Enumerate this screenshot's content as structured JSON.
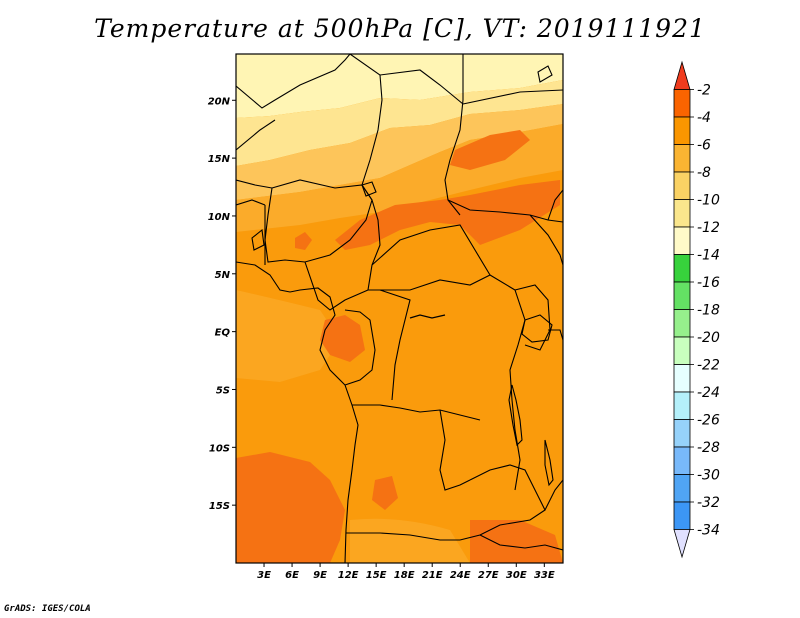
{
  "title": "Temperature at 500hPa [C], VT: 2019111921",
  "credit": "GrADS: IGES/COLA",
  "map": {
    "variable": "Temperature",
    "level": "500hPa",
    "units": "C",
    "valid_time": "2019111921",
    "lon_range": [
      0,
      35
    ],
    "lat_range": [
      -20,
      24
    ],
    "lat_ticks": [
      {
        "value": 20,
        "label": "20N"
      },
      {
        "value": 15,
        "label": "15N"
      },
      {
        "value": 10,
        "label": "10N"
      },
      {
        "value": 5,
        "label": "5N"
      },
      {
        "value": 0,
        "label": "EQ"
      },
      {
        "value": -5,
        "label": "5S"
      },
      {
        "value": -10,
        "label": "10S"
      },
      {
        "value": -15,
        "label": "15S"
      }
    ],
    "lon_ticks": [
      {
        "value": 3,
        "label": "3E"
      },
      {
        "value": 6,
        "label": "6E"
      },
      {
        "value": 9,
        "label": "9E"
      },
      {
        "value": 12,
        "label": "12E"
      },
      {
        "value": 15,
        "label": "15E"
      },
      {
        "value": 18,
        "label": "18E"
      },
      {
        "value": 21,
        "label": "21E"
      },
      {
        "value": 24,
        "label": "24E"
      },
      {
        "value": 27,
        "label": "27E"
      },
      {
        "value": 30,
        "label": "30E"
      },
      {
        "value": 33,
        "label": "33E"
      }
    ]
  },
  "colorbar": {
    "levels": [
      "-2",
      "-4",
      "-6",
      "-8",
      "-10",
      "-12",
      "-14",
      "-16",
      "-18",
      "-20",
      "-22",
      "-24",
      "-26",
      "-28",
      "-30",
      "-32",
      "-34"
    ],
    "colors": [
      "#f03c1e",
      "#fa6400",
      "#fa9600",
      "#fab432",
      "#fad264",
      "#fae68c",
      "#fffac8",
      "#37d23c",
      "#64e164",
      "#96f08c",
      "#c8ffbe",
      "#e6ffff",
      "#b4f0fa",
      "#96d2fa",
      "#78b9fa",
      "#50a5f5",
      "#3c96f5",
      "#1e6eeb",
      "#1450d2",
      "#0a1e78",
      "#e1e1ff"
    ]
  },
  "colors": {
    "yellow_light": "#fff5b4",
    "yellow": "#fee591",
    "light_orange": "#fdc55a",
    "orange": "#fbab2a",
    "dark_orange": "#fa9b0c",
    "red_orange": "#f57213"
  }
}
